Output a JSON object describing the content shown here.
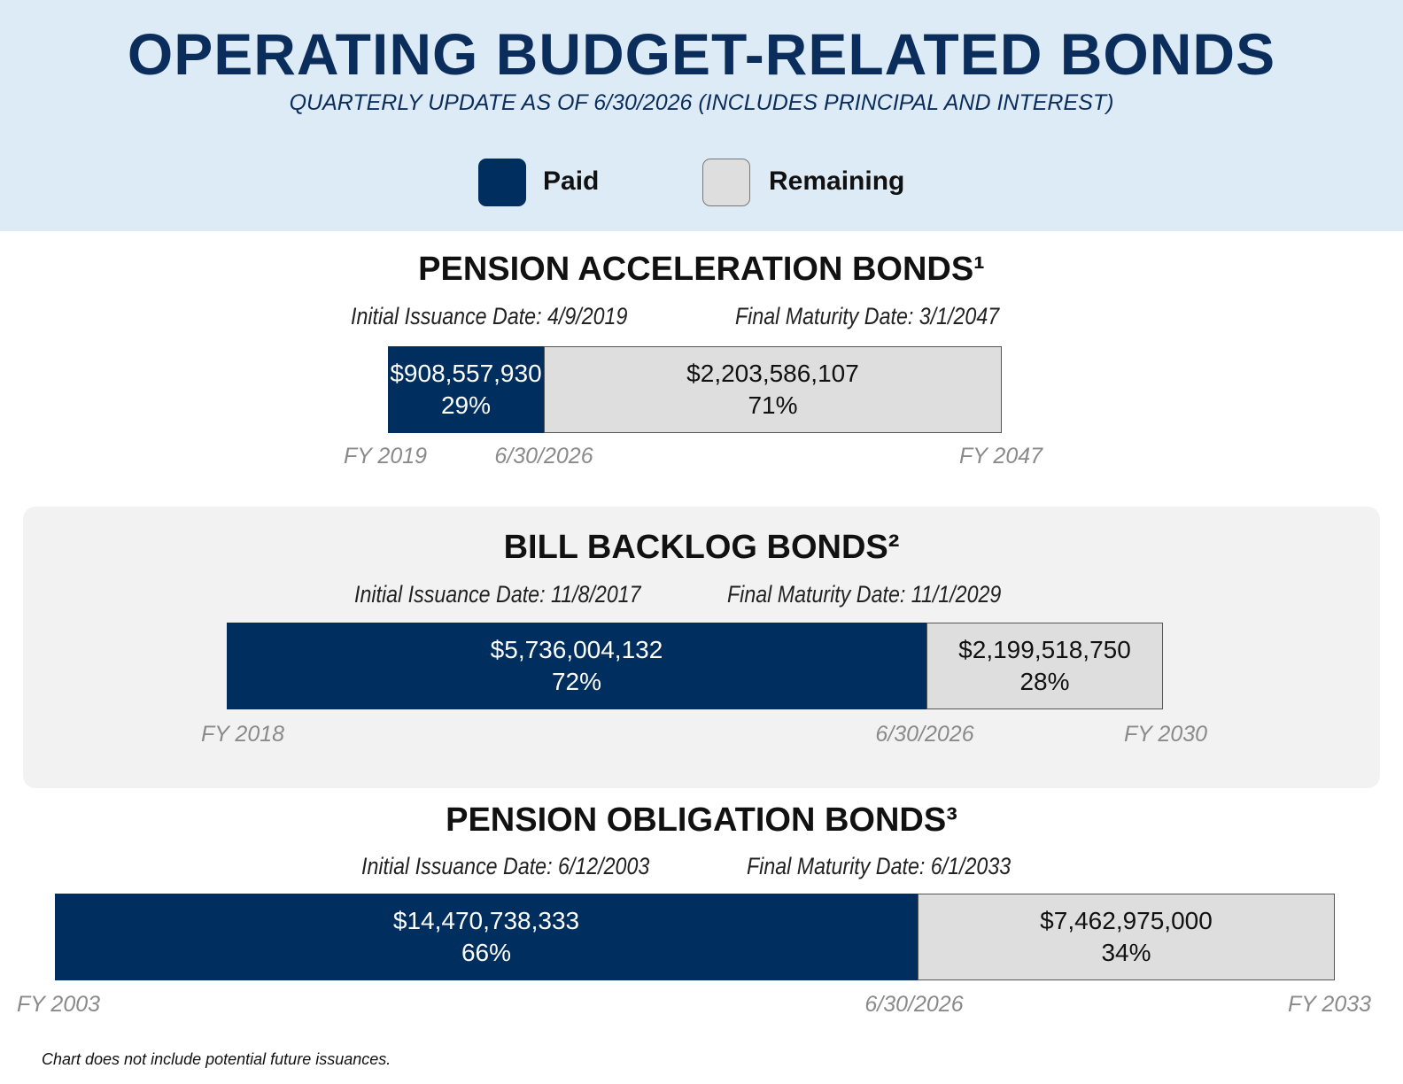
{
  "header": {
    "title": "OPERATING BUDGET-RELATED BONDS",
    "subtitle": "QUARTERLY UPDATE AS OF 6/30/2026 (INCLUDES PRINCIPAL AND INTEREST)"
  },
  "legend": {
    "paid_label": "Paid",
    "remaining_label": "Remaining",
    "paid_color": "#002f5f",
    "remaining_color": "#dedede"
  },
  "chart_data": [
    {
      "type": "bar",
      "title": "PENSION ACCELERATION BONDS¹",
      "initial_issuance": "Initial Issuance Date: 4/9/2019",
      "final_maturity": "Final Maturity Date: 3/1/2047",
      "series": [
        {
          "name": "Paid",
          "value": 908557930,
          "amount_label": "$908,557,930",
          "percent": 29,
          "percent_label": "29%"
        },
        {
          "name": "Remaining",
          "value": 2203586107,
          "amount_label": "$2,203,586,107",
          "percent": 71,
          "percent_label": "71%"
        }
      ],
      "axis": {
        "start_label": "FY 2019",
        "current_label": "6/30/2026",
        "end_label": "FY 2047"
      }
    },
    {
      "type": "bar",
      "title": "BILL BACKLOG BONDS²",
      "initial_issuance": "Initial Issuance Date: 11/8/2017",
      "final_maturity": "Final Maturity Date: 11/1/2029",
      "series": [
        {
          "name": "Paid",
          "value": 5736004132,
          "amount_label": "$5,736,004,132",
          "percent": 72,
          "percent_label": "72%"
        },
        {
          "name": "Remaining",
          "value": 2199518750,
          "amount_label": "$2,199,518,750",
          "percent": 28,
          "percent_label": "28%"
        }
      ],
      "axis": {
        "start_label": "FY 2018",
        "current_label": "6/30/2026",
        "end_label": "FY 2030"
      }
    },
    {
      "type": "bar",
      "title": "PENSION OBLIGATION BONDS³",
      "initial_issuance": "Initial Issuance Date: 6/12/2003",
      "final_maturity": "Final Maturity Date: 6/1/2033",
      "series": [
        {
          "name": "Paid",
          "value": 14470738333,
          "amount_label": "$14,470,738,333",
          "percent": 66,
          "percent_label": "66%"
        },
        {
          "name": "Remaining",
          "value": 7462975000,
          "amount_label": "$7,462,975,000",
          "percent": 34,
          "percent_label": "34%"
        }
      ],
      "axis": {
        "start_label": "FY 2003",
        "current_label": "6/30/2026",
        "end_label": "FY 2033"
      }
    }
  ],
  "footnote": "Chart does not include potential future issuances."
}
